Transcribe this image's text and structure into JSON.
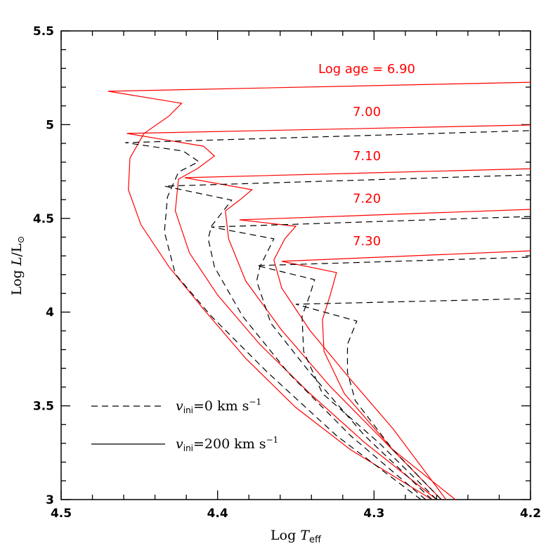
{
  "chart_data": {
    "type": "line",
    "x_label": {
      "text": "Log ",
      "italic": "T",
      "sub": "eff"
    },
    "y_label": {
      "text": "Log ",
      "italic": "L",
      "rest": "/L",
      "sub": "⊙"
    },
    "xlim": [
      4.5,
      4.2
    ],
    "ylim": [
      3,
      5.5
    ],
    "xticks": [
      4.5,
      4.4,
      4.3,
      4.2
    ],
    "yticks": [
      3,
      3.5,
      4,
      4.5,
      5,
      5.5
    ],
    "xminorticks": [
      4.48,
      4.46,
      4.44,
      4.42,
      4.38,
      4.36,
      4.34,
      4.32,
      4.28,
      4.26,
      4.24,
      4.22
    ],
    "yminorticks": [
      3.1,
      3.2,
      3.3,
      3.4,
      3.6,
      3.7,
      3.8,
      3.9,
      4.1,
      4.2,
      4.3,
      4.4,
      4.6,
      4.7,
      4.8,
      4.9,
      5.1,
      5.2,
      5.3,
      5.4
    ],
    "series": [
      {
        "label": "Log age = 6.90",
        "style": "solid",
        "color": "#ff0000",
        "x": [
          4.263,
          4.315,
          4.35,
          4.382,
          4.409,
          4.431,
          4.449,
          4.457,
          4.456,
          4.447,
          4.431,
          4.423,
          4.47,
          4.2
        ],
        "y": [
          3,
          3.266,
          3.491,
          3.753,
          4.016,
          4.241,
          4.466,
          4.653,
          4.822,
          4.953,
          5.046,
          5.114,
          5.178,
          5.226
        ]
      },
      {
        "label": "7.00",
        "style": "solid",
        "color": "#ff0000",
        "x": [
          4.26,
          4.306,
          4.341,
          4.373,
          4.4,
          4.418,
          4.427,
          4.425,
          4.413,
          4.402,
          4.409,
          4.458,
          4.2
        ],
        "y": [
          3,
          3.304,
          3.566,
          3.828,
          4.091,
          4.316,
          4.54,
          4.709,
          4.765,
          4.833,
          4.885,
          4.953,
          4.998
        ]
      },
      {
        "label": "7.10",
        "style": "solid",
        "color": "#ff0000",
        "x": [
          4.257,
          4.297,
          4.328,
          4.359,
          4.382,
          4.393,
          4.395,
          4.386,
          4.378,
          4.421,
          4.2
        ],
        "y": [
          3,
          3.341,
          3.603,
          3.903,
          4.166,
          4.391,
          4.54,
          4.597,
          4.653,
          4.717,
          4.765
        ]
      },
      {
        "label": "7.20",
        "style": "solid",
        "color": "#ff0000",
        "x": [
          4.254,
          4.288,
          4.315,
          4.341,
          4.359,
          4.364,
          4.357,
          4.35,
          4.386,
          4.2
        ],
        "y": [
          3,
          3.379,
          3.641,
          3.903,
          4.128,
          4.278,
          4.391,
          4.458,
          4.492,
          4.548
        ]
      },
      {
        "label": "7.30",
        "style": "solid",
        "color": "#ff0000",
        "x": [
          4.248,
          4.288,
          4.319,
          4.332,
          4.333,
          4.328,
          4.324,
          4.359,
          4.2
        ],
        "y": [
          3,
          3.266,
          3.566,
          3.791,
          3.96,
          4.091,
          4.211,
          4.271,
          4.327
        ]
      },
      {
        "style": "dashed",
        "color": "#000000",
        "x": [
          4.27,
          4.324,
          4.368,
          4.404,
          4.427,
          4.434,
          4.432,
          4.425,
          4.412,
          4.422,
          4.459,
          4.2
        ],
        "y": [
          3,
          3.341,
          3.678,
          3.978,
          4.203,
          4.428,
          4.615,
          4.747,
          4.803,
          4.859,
          4.904,
          4.968
        ]
      },
      {
        "style": "dashed",
        "color": "#000000",
        "x": [
          4.267,
          4.315,
          4.355,
          4.384,
          4.402,
          4.406,
          4.404,
          4.391,
          4.434,
          4.2
        ],
        "y": [
          3,
          3.341,
          3.678,
          3.978,
          4.241,
          4.391,
          4.458,
          4.597,
          4.672,
          4.732
        ]
      },
      {
        "style": "dashed",
        "color": "#000000",
        "x": [
          4.263,
          4.306,
          4.341,
          4.366,
          4.375,
          4.373,
          4.364,
          4.404,
          4.2
        ],
        "y": [
          3,
          3.341,
          3.678,
          3.941,
          4.166,
          4.241,
          4.391,
          4.454,
          4.51
        ]
      },
      {
        "style": "dashed",
        "color": "#000000",
        "x": [
          4.26,
          4.297,
          4.333,
          4.345,
          4.346,
          4.341,
          4.338,
          4.375,
          4.2
        ],
        "y": [
          3,
          3.304,
          3.566,
          3.791,
          3.978,
          4.091,
          4.173,
          4.248,
          4.293
        ]
      },
      {
        "style": "dashed",
        "color": "#000000",
        "x": [
          4.257,
          4.288,
          4.312,
          4.317,
          4.317,
          4.311,
          4.35,
          4.2
        ],
        "y": [
          3,
          3.266,
          3.528,
          3.678,
          3.828,
          3.952,
          4.042,
          4.072
        ]
      }
    ],
    "legend": [
      {
        "style": "dashed",
        "color": "#000000",
        "v": "v",
        "sub": "ini",
        "text": "=0 km s",
        "sup": "−1"
      },
      {
        "style": "solid",
        "color": "#000000",
        "v": "v",
        "sub": "ini",
        "text": "=200 km s",
        "sup": "−1"
      }
    ]
  }
}
